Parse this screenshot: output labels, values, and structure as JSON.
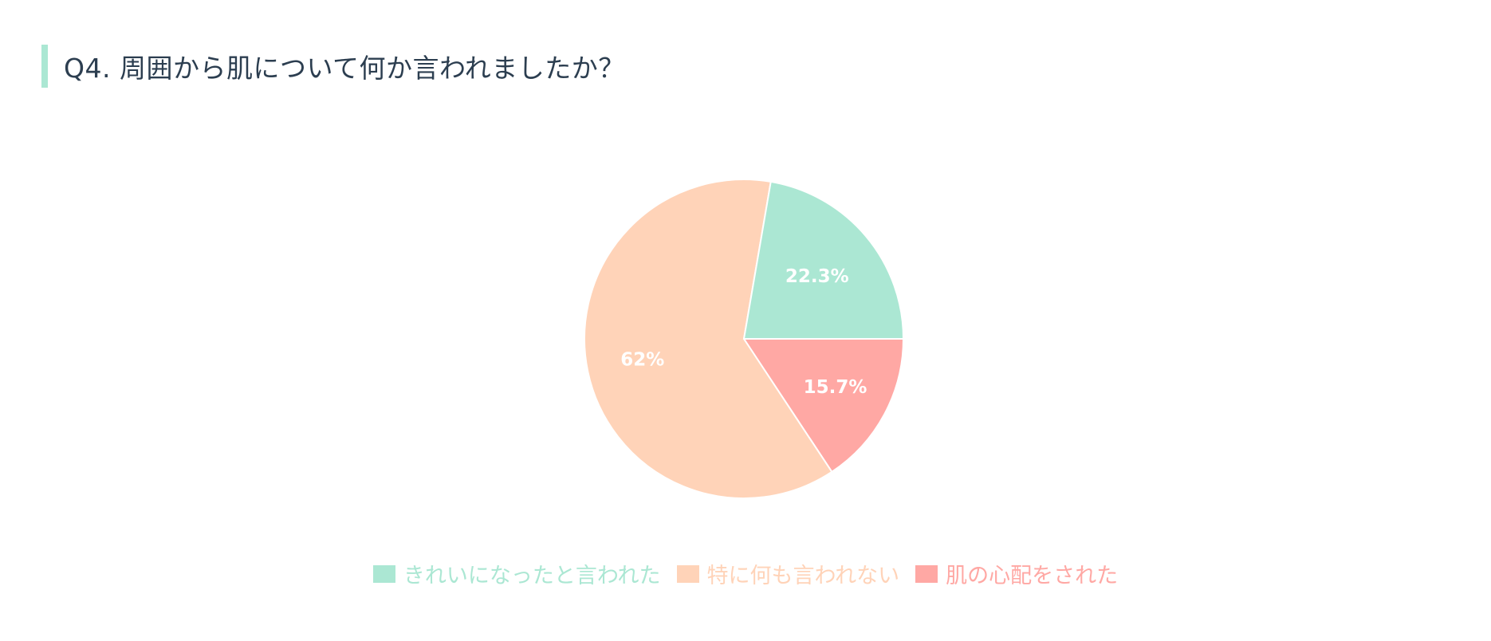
{
  "title": "Q4. 周囲から肌について何か言われましたか？",
  "accent_color": "#abe7d3",
  "chart_data": {
    "type": "pie",
    "categories": [
      "きれいになったと言われた",
      "特に何も言われない",
      "肌の心配をされた"
    ],
    "values": [
      22.3,
      62,
      15.7
    ],
    "data_labels": [
      "22.3%",
      "62%",
      "15.7%"
    ],
    "colors": [
      "#abe7d3",
      "#ffd3b8",
      "#ffa8a4"
    ],
    "legend_position": "bottom",
    "start_angle": "3 o'clock, clockwise order: 肌の心配をされた, 特に何も言われない, きれいになったと言われた"
  },
  "legend": {
    "items": [
      {
        "label": "きれいになったと言われた",
        "color": "#abe7d3"
      },
      {
        "label": "特に何も言われない",
        "color": "#ffd3b8"
      },
      {
        "label": "肌の心配をされた",
        "color": "#ffa8a4"
      }
    ]
  }
}
